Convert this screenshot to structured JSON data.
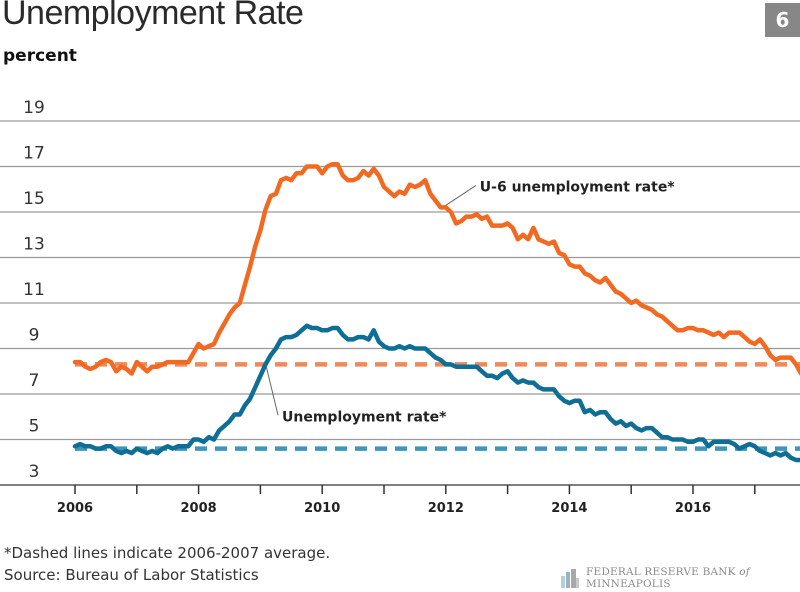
{
  "header": {
    "title": "Unemployment Rate",
    "badge": "6",
    "unit": "percent"
  },
  "footer": {
    "note": "*Dashed lines indicate 2006-2007 average.",
    "source": "Source: Bureau of Labor Statistics",
    "logo_prefix": "FEDERAL RESERVE BANK ",
    "logo_of": "of",
    "logo_suffix": " MINNEAPOLIS"
  },
  "chart_data": {
    "type": "line",
    "title": "Unemployment Rate",
    "ylabel": "percent",
    "xlabel": "",
    "ylim": [
      3,
      20
    ],
    "xlim": [
      2006.0,
      2017.9
    ],
    "yticks": [
      3,
      5,
      7,
      9,
      11,
      13,
      15,
      17,
      19
    ],
    "xticks": [
      2006,
      2007,
      2008,
      2009,
      2010,
      2011,
      2012,
      2013,
      2014,
      2015,
      2016,
      2017
    ],
    "xtick_labels": [
      "2006",
      "",
      "2008",
      "",
      "2010",
      "",
      "2012",
      "",
      "2014",
      "",
      "2016",
      ""
    ],
    "grid": true,
    "x_start": 2006.0,
    "x_step_months": 1,
    "series": [
      {
        "name": "U-6 unemployment rate*",
        "color": "#f26a21",
        "average_2006_2007": 8.3,
        "average_color": "#f0895a",
        "values": [
          8.4,
          8.4,
          8.2,
          8.1,
          8.2,
          8.4,
          8.5,
          8.4,
          8.0,
          8.2,
          8.1,
          7.9,
          8.4,
          8.2,
          8.0,
          8.2,
          8.2,
          8.3,
          8.4,
          8.4,
          8.4,
          8.4,
          8.4,
          8.8,
          9.2,
          9.0,
          9.1,
          9.2,
          9.7,
          10.1,
          10.5,
          10.8,
          11.0,
          11.8,
          12.6,
          13.5,
          14.2,
          15.1,
          15.7,
          15.8,
          16.4,
          16.5,
          16.4,
          16.7,
          16.7,
          17.0,
          17.0,
          17.0,
          16.7,
          17.0,
          17.1,
          17.1,
          16.6,
          16.4,
          16.4,
          16.5,
          16.8,
          16.6,
          16.9,
          16.6,
          16.1,
          15.9,
          15.7,
          15.9,
          15.8,
          16.2,
          16.1,
          16.2,
          16.4,
          15.8,
          15.5,
          15.2,
          15.2,
          15.0,
          14.5,
          14.6,
          14.8,
          14.8,
          14.9,
          14.7,
          14.8,
          14.4,
          14.4,
          14.4,
          14.5,
          14.3,
          13.8,
          14.0,
          13.8,
          14.3,
          13.8,
          13.7,
          13.6,
          13.7,
          13.2,
          13.1,
          12.7,
          12.6,
          12.6,
          12.3,
          12.2,
          12.0,
          11.9,
          12.1,
          11.8,
          11.5,
          11.4,
          11.2,
          11.0,
          11.1,
          10.9,
          10.8,
          10.7,
          10.5,
          10.4,
          10.2,
          10.0,
          9.8,
          9.8,
          9.9,
          9.9,
          9.8,
          9.8,
          9.7,
          9.6,
          9.7,
          9.5,
          9.7,
          9.7,
          9.7,
          9.5,
          9.3,
          9.2,
          9.4,
          9.1,
          8.7,
          8.5,
          8.6,
          8.6,
          8.6,
          8.3,
          7.9,
          8.0
        ]
      },
      {
        "name": "Unemployment rate*",
        "color": "#0f6e96",
        "average_2006_2007": 4.6,
        "average_color": "#3f97b8",
        "values": [
          4.7,
          4.8,
          4.7,
          4.7,
          4.6,
          4.6,
          4.7,
          4.7,
          4.5,
          4.4,
          4.5,
          4.4,
          4.6,
          4.5,
          4.4,
          4.5,
          4.4,
          4.6,
          4.7,
          4.6,
          4.7,
          4.7,
          4.7,
          5.0,
          5.0,
          4.9,
          5.1,
          5.0,
          5.4,
          5.6,
          5.8,
          6.1,
          6.1,
          6.5,
          6.8,
          7.3,
          7.8,
          8.3,
          8.7,
          9.0,
          9.4,
          9.5,
          9.5,
          9.6,
          9.8,
          10.0,
          9.9,
          9.9,
          9.8,
          9.8,
          9.9,
          9.9,
          9.6,
          9.4,
          9.4,
          9.5,
          9.5,
          9.4,
          9.8,
          9.3,
          9.1,
          9.0,
          9.0,
          9.1,
          9.0,
          9.1,
          9.0,
          9.0,
          9.0,
          8.8,
          8.6,
          8.5,
          8.3,
          8.3,
          8.2,
          8.2,
          8.2,
          8.2,
          8.2,
          8.0,
          7.8,
          7.8,
          7.7,
          7.9,
          8.0,
          7.7,
          7.5,
          7.6,
          7.5,
          7.5,
          7.3,
          7.2,
          7.2,
          7.2,
          6.9,
          6.7,
          6.6,
          6.7,
          6.7,
          6.2,
          6.3,
          6.1,
          6.2,
          6.2,
          5.9,
          5.7,
          5.8,
          5.6,
          5.7,
          5.5,
          5.4,
          5.5,
          5.5,
          5.3,
          5.1,
          5.1,
          5.0,
          5.0,
          5.0,
          4.9,
          4.9,
          5.0,
          5.0,
          4.7,
          4.9,
          4.9,
          4.9,
          4.9,
          4.8,
          4.6,
          4.7,
          4.8,
          4.7,
          4.5,
          4.4,
          4.3,
          4.4,
          4.3,
          4.4,
          4.2,
          4.1,
          4.1
        ]
      }
    ],
    "annotations": [
      {
        "text": "U-6 unemployment rate*",
        "series": 0,
        "at_x": 2011.95,
        "label_x": 2012.55,
        "label_y": 15.9
      },
      {
        "text": "Unemployment rate*",
        "series": 1,
        "at_x": 2009.05,
        "label_x": 2009.35,
        "label_y": 5.8
      }
    ]
  }
}
